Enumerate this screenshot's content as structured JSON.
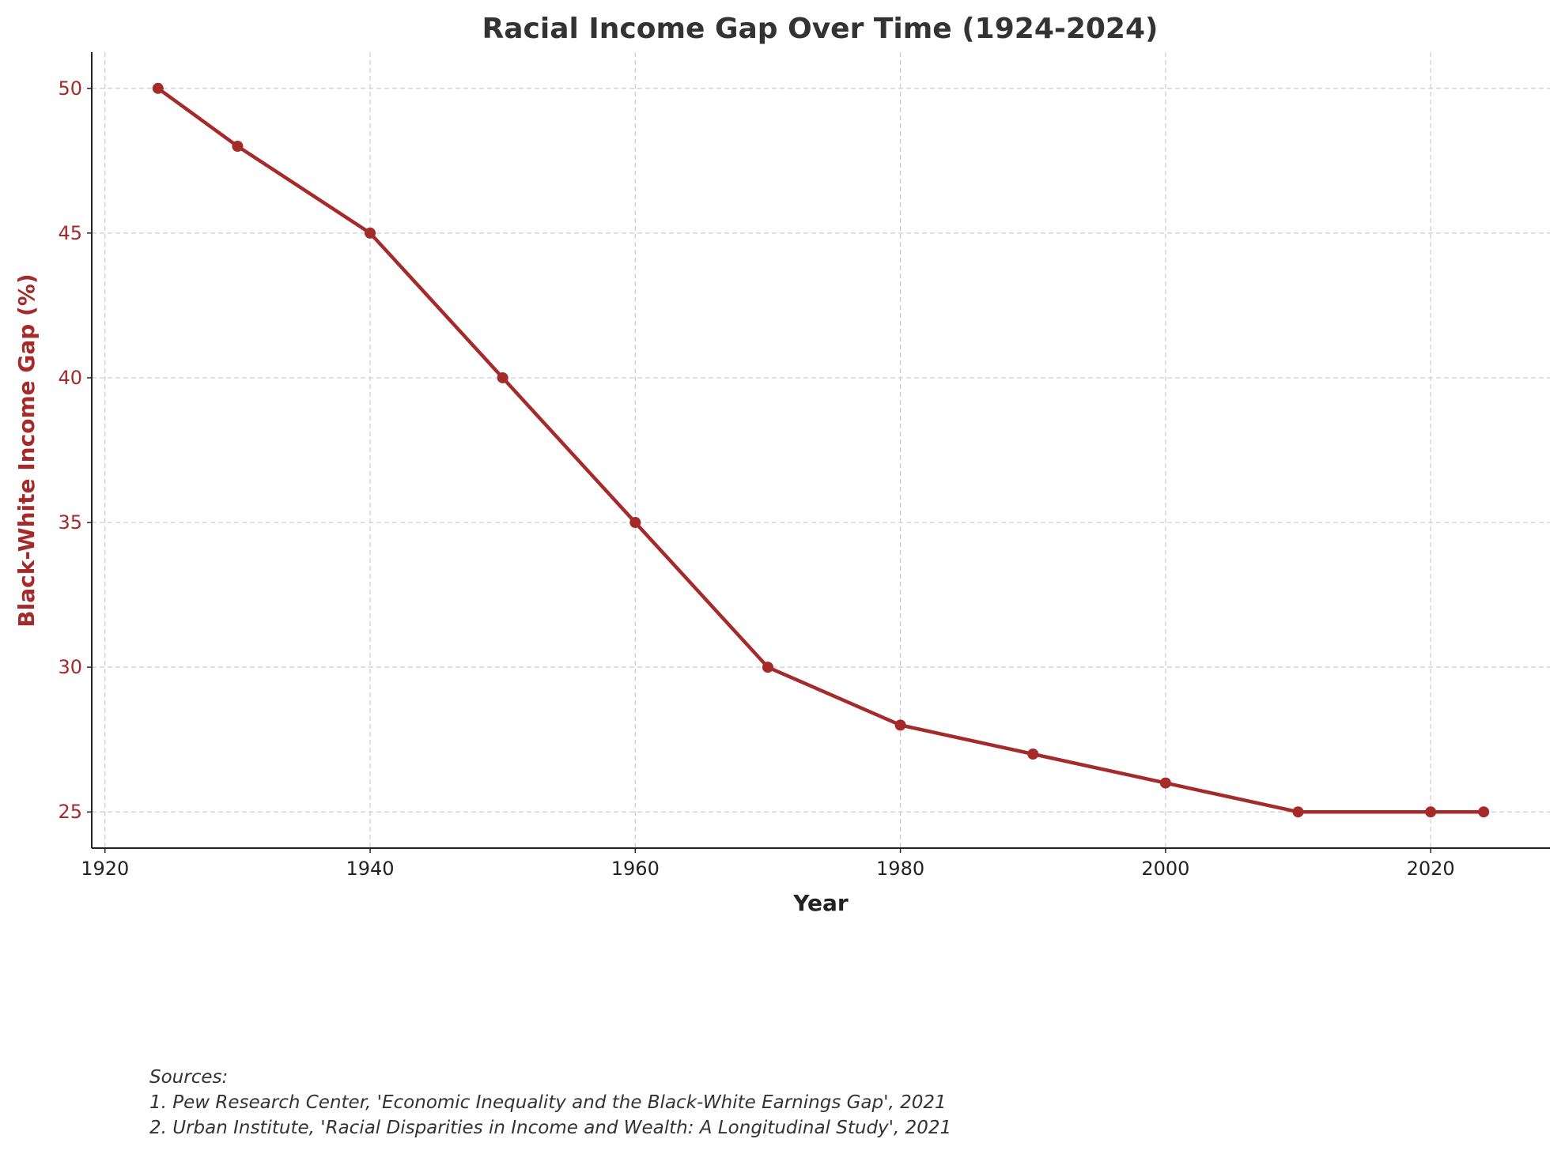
{
  "chart_data": {
    "type": "line",
    "title": "Racial Income Gap Over Time (1924-2024)",
    "xlabel": "Year",
    "ylabel": "Black-White Income Gap (%)",
    "x": [
      1924,
      1930,
      1940,
      1950,
      1960,
      1970,
      1980,
      1990,
      2000,
      2010,
      2020,
      2024
    ],
    "series": [
      {
        "values": [
          50,
          48,
          45,
          40,
          35,
          30,
          28,
          27,
          26,
          25,
          25,
          25
        ],
        "color": "#a52a2a",
        "marker": "circle"
      }
    ],
    "xlim": [
      1919,
      2029
    ],
    "ylim": [
      23.75,
      51.25
    ],
    "xticks": [
      "1920",
      "1940",
      "1960",
      "1980",
      "2000",
      "2020"
    ],
    "yticks": [
      "25",
      "30",
      "35",
      "40",
      "45",
      "50"
    ],
    "ytick_color": "#a52a2a",
    "ylabel_color": "#a52a2a",
    "grid": true,
    "grid_style": "dashed"
  },
  "sources": {
    "heading": "Sources:",
    "items": [
      "1. Pew Research Center, 'Economic Inequality and the Black-White Earnings Gap', 2021",
      "2. Urban Institute, 'Racial Disparities in Income and Wealth: A Longitudinal Study', 2021"
    ]
  }
}
